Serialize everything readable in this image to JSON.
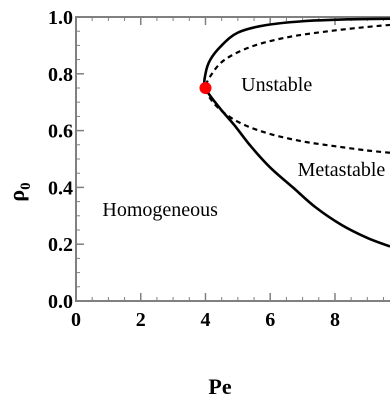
{
  "chart_data": {
    "type": "line",
    "xlabel": "Pe",
    "ylabel": "ρ",
    "ylabel_subscript": "0",
    "xlim": [
      0,
      9.7
    ],
    "ylim": [
      0,
      1
    ],
    "xticks": [
      0,
      2,
      4,
      6,
      8
    ],
    "xtick_labels": [
      "0",
      "2",
      "4",
      "6",
      "8"
    ],
    "yticks": [
      0.0,
      0.2,
      0.4,
      0.6,
      0.8,
      1.0
    ],
    "ytick_labels": [
      "0.0",
      "0.2",
      "0.4",
      "0.6",
      "0.8",
      "1.0"
    ],
    "grid": false,
    "series": [
      {
        "style": "solid",
        "color": "#000000",
        "points": [
          [
            9.7,
            0.192
          ],
          [
            9.0,
            0.222
          ],
          [
            8.2,
            0.268
          ],
          [
            7.4,
            0.33
          ],
          [
            6.7,
            0.4
          ],
          [
            6.0,
            0.47
          ],
          [
            5.4,
            0.545
          ],
          [
            4.9,
            0.618
          ],
          [
            4.4,
            0.685
          ],
          [
            4.0,
            0.75
          ],
          [
            4.0,
            0.8
          ],
          [
            4.15,
            0.85
          ],
          [
            4.5,
            0.9
          ],
          [
            5.0,
            0.945
          ],
          [
            5.8,
            0.97
          ],
          [
            7.0,
            0.985
          ],
          [
            8.5,
            0.992
          ],
          [
            9.7,
            0.994
          ]
        ]
      },
      {
        "style": "dashed",
        "color": "#000000",
        "points": [
          [
            9.7,
            0.522
          ],
          [
            9.0,
            0.53
          ],
          [
            8.0,
            0.545
          ],
          [
            7.0,
            0.562
          ],
          [
            6.0,
            0.588
          ],
          [
            5.2,
            0.62
          ],
          [
            4.6,
            0.66
          ],
          [
            4.2,
            0.705
          ],
          [
            4.0,
            0.75
          ],
          [
            4.2,
            0.8
          ],
          [
            4.6,
            0.85
          ],
          [
            5.4,
            0.895
          ],
          [
            6.5,
            0.928
          ],
          [
            7.8,
            0.95
          ],
          [
            9.0,
            0.965
          ],
          [
            9.7,
            0.972
          ]
        ]
      }
    ],
    "critical_point": {
      "x": 4.0,
      "y": 0.75,
      "color": "#ff0000"
    },
    "annotations": [
      {
        "text": "Unstable",
        "x": 6.2,
        "y": 0.74
      },
      {
        "text": "Metastable",
        "x": 8.2,
        "y": 0.44
      },
      {
        "text": "Homogeneous",
        "x": 2.6,
        "y": 0.3
      }
    ]
  }
}
